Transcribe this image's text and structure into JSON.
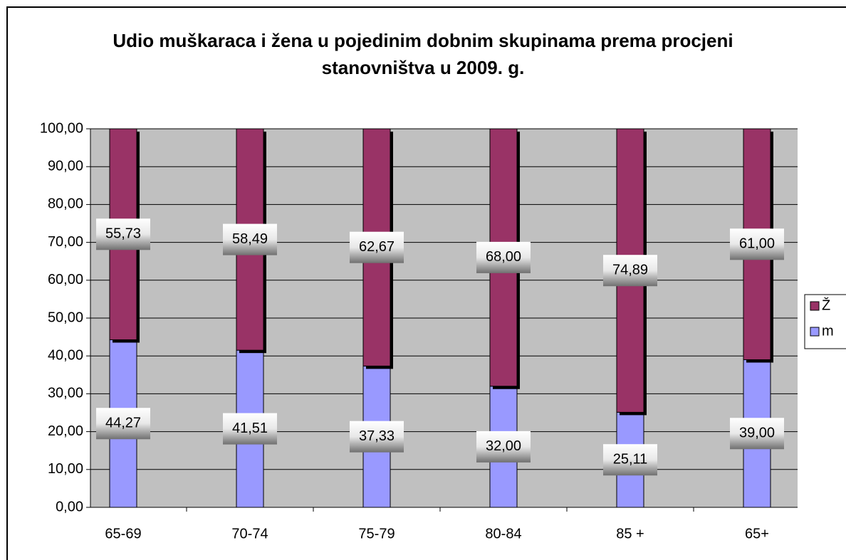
{
  "chart_data": {
    "type": "stacked_bar",
    "title": "Udio muškaraca i žena u pojedinim dobnim skupinama prema procjeni stanovništva u 2009. g.",
    "categories": [
      "65-69",
      "70-74",
      "75-79",
      "80-84",
      "85 +",
      "65+"
    ],
    "series": [
      {
        "name": "m",
        "color": "#9999ff",
        "values": [
          44.27,
          41.51,
          37.33,
          32.0,
          25.11,
          39.0
        ],
        "value_labels": [
          "44,27",
          "41,51",
          "37,33",
          "32,00",
          "25,11",
          "39,00"
        ]
      },
      {
        "name": "Ž",
        "color": "#993366",
        "values": [
          55.73,
          58.49,
          62.67,
          68.0,
          74.89,
          61.0
        ],
        "value_labels": [
          "55,73",
          "58,49",
          "62,67",
          "68,00",
          "74,89",
          "61,00"
        ]
      }
    ],
    "ylim": [
      0,
      100
    ],
    "yticks": [
      {
        "value": 0,
        "label": "0,00"
      },
      {
        "value": 10,
        "label": "10,00"
      },
      {
        "value": 20,
        "label": "20,00"
      },
      {
        "value": 30,
        "label": "30,00"
      },
      {
        "value": 40,
        "label": "40,00"
      },
      {
        "value": 50,
        "label": "50,00"
      },
      {
        "value": 60,
        "label": "60,00"
      },
      {
        "value": 70,
        "label": "70,00"
      },
      {
        "value": 80,
        "label": "80,00"
      },
      {
        "value": 90,
        "label": "90,00"
      },
      {
        "value": 100,
        "label": "100,00"
      }
    ],
    "grid": true,
    "legend": "right"
  }
}
